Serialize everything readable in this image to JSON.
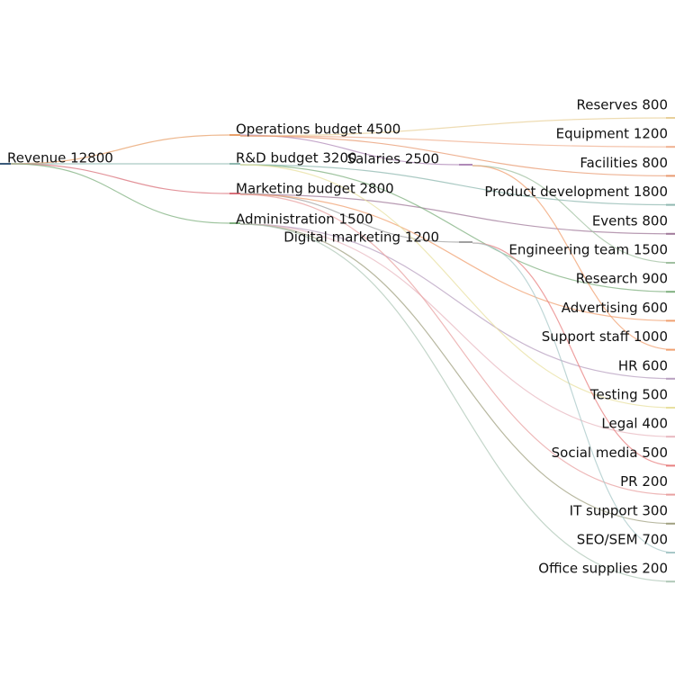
{
  "chart_data": {
    "type": "flow-tree",
    "root": {
      "label": "Revenue",
      "value": 12800
    },
    "level1": [
      {
        "label": "Operations budget",
        "value": 4500,
        "color": "#e8a06a"
      },
      {
        "label": "R&D budget",
        "value": 3200,
        "color": "#8fb8b0"
      },
      {
        "label": "Marketing budget",
        "value": 2800,
        "color": "#d9707a"
      },
      {
        "label": "Administration",
        "value": 1500,
        "color": "#7fb07f"
      }
    ],
    "level2": [
      {
        "label": "Salaries",
        "value": 2500,
        "parent": "Operations budget",
        "color": "#b08ab8"
      },
      {
        "label": "Digital marketing",
        "value": 1200,
        "parent": "Marketing budget",
        "color": "#a0a0a0"
      }
    ],
    "leaves": [
      {
        "label": "Reserves",
        "value": 800,
        "parent": "Operations budget",
        "color": "#e8d09a"
      },
      {
        "label": "Equipment",
        "value": 1200,
        "parent": "Operations budget",
        "color": "#f0b090"
      },
      {
        "label": "Facilities",
        "value": 800,
        "parent": "Operations budget",
        "color": "#e89a70"
      },
      {
        "label": "Product development",
        "value": 1800,
        "parent": "R&D budget",
        "color": "#8fb8b0"
      },
      {
        "label": "Events",
        "value": 800,
        "parent": "Marketing budget",
        "color": "#a07a9a"
      },
      {
        "label": "Engineering team",
        "value": 1500,
        "parent": "Salaries",
        "color": "#a0c0a0"
      },
      {
        "label": "Research",
        "value": 900,
        "parent": "R&D budget",
        "color": "#7fb07f"
      },
      {
        "label": "Advertising",
        "value": 600,
        "parent": "Marketing budget",
        "color": "#f0a070"
      },
      {
        "label": "Support staff",
        "value": 1000,
        "parent": "Salaries",
        "color": "#f0a070"
      },
      {
        "label": "HR",
        "value": 600,
        "parent": "Administration",
        "color": "#b8a0c0"
      },
      {
        "label": "Testing",
        "value": 500,
        "parent": "R&D budget",
        "color": "#e8e0a0"
      },
      {
        "label": "Legal",
        "value": 400,
        "parent": "Administration",
        "color": "#e8b8c0"
      },
      {
        "label": "Social media",
        "value": 500,
        "parent": "Digital marketing",
        "color": "#e88080"
      },
      {
        "label": "PR",
        "value": 200,
        "parent": "Marketing budget",
        "color": "#e8a0a0"
      },
      {
        "label": "IT support",
        "value": 300,
        "parent": "Administration",
        "color": "#a0a080"
      },
      {
        "label": "SEO/SEM",
        "value": 700,
        "parent": "Digital marketing",
        "color": "#a8c8c8"
      },
      {
        "label": "Office supplies",
        "value": 200,
        "parent": "Administration",
        "color": "#b0c8b8"
      }
    ]
  }
}
